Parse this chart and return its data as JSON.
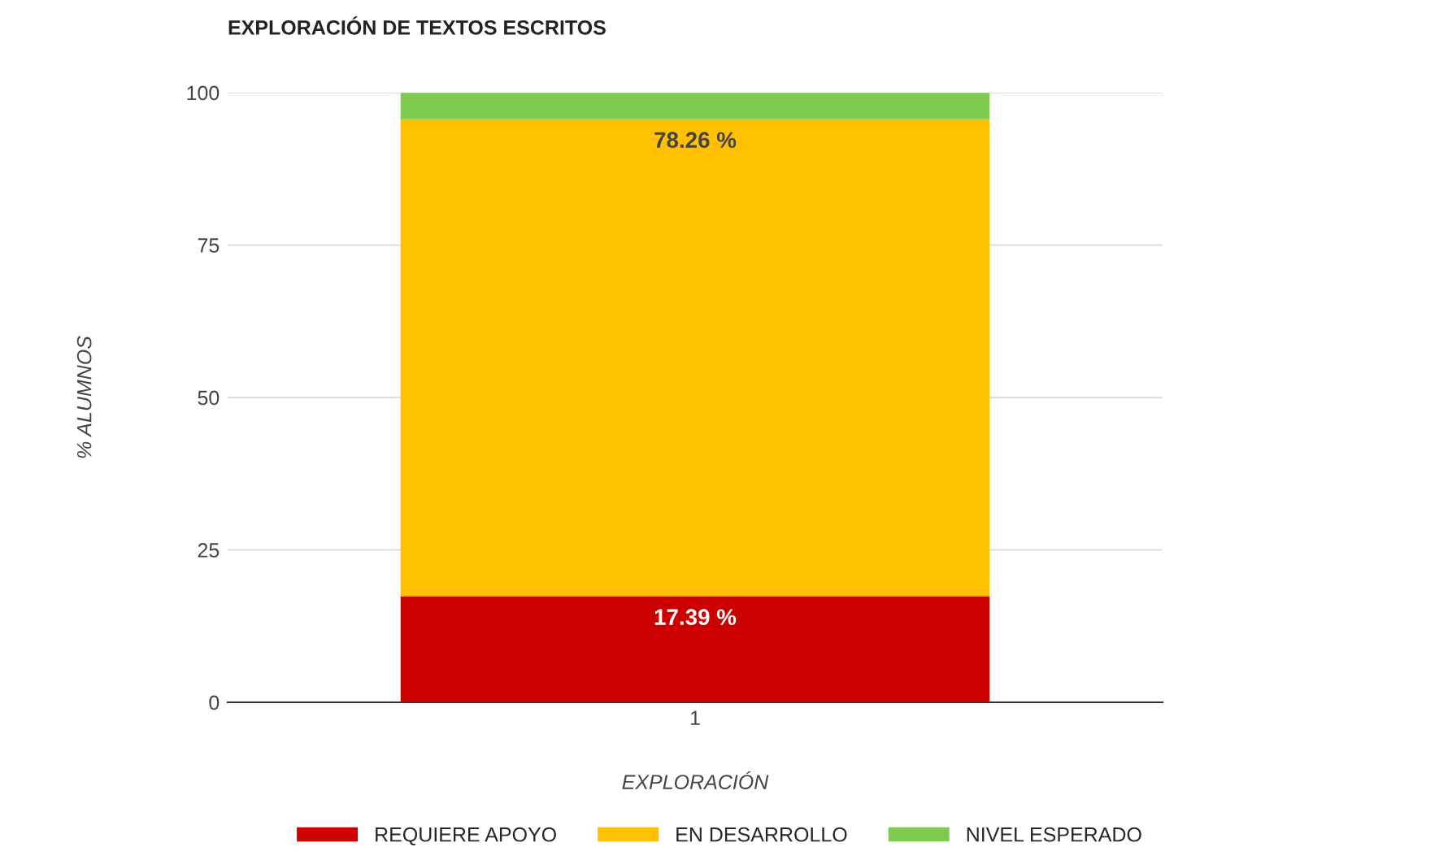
{
  "chart_data": {
    "type": "bar",
    "title": "EXPLORACIÓN DE TEXTOS ESCRITOS",
    "xlabel": "EXPLORACIÓN",
    "ylabel": "% ALUMNOS",
    "categories": [
      "1"
    ],
    "stacked": true,
    "series": [
      {
        "name": "REQUIERE APOYO",
        "color": "#cc0000",
        "values": [
          17.39
        ],
        "value_labels": [
          "17.39 %"
        ]
      },
      {
        "name": "EN DESARROLLO",
        "color": "#ffc000",
        "values": [
          78.26
        ],
        "value_labels": [
          "78.26 %"
        ]
      },
      {
        "name": "NIVEL ESPERADO",
        "color": "#7ecb4f",
        "values": [
          4.3
        ],
        "value_labels": [
          null
        ]
      }
    ],
    "ylim": [
      0,
      100
    ],
    "yticks": [
      0,
      25,
      50,
      75,
      100
    ],
    "grid": "y",
    "legend": "bottom"
  }
}
